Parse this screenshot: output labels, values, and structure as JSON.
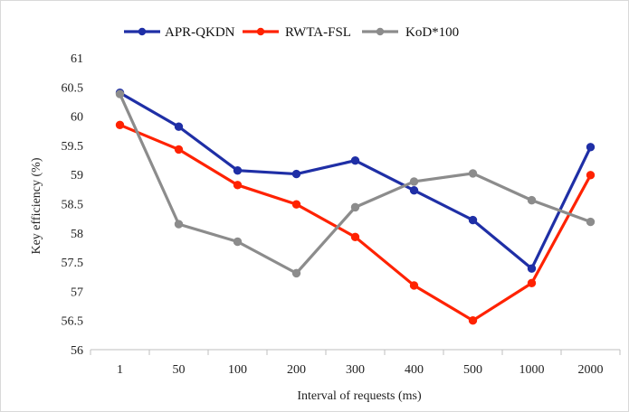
{
  "chart_data": {
    "type": "line",
    "categories": [
      "1",
      "50",
      "100",
      "200",
      "300",
      "400",
      "500",
      "1000",
      "2000"
    ],
    "series": [
      {
        "name": "APR-QKDN",
        "color": "#1f2fa6",
        "values": [
          60.4,
          59.82,
          59.07,
          59.01,
          59.24,
          58.73,
          58.22,
          57.39,
          59.47
        ]
      },
      {
        "name": "RWTA-FSL",
        "color": "#ff2200",
        "values": [
          59.85,
          59.43,
          58.82,
          58.49,
          57.93,
          57.1,
          56.5,
          57.14,
          58.99
        ]
      },
      {
        "name": "KoD*100",
        "color": "#8c8c8c",
        "values": [
          60.38,
          58.15,
          57.85,
          57.31,
          58.44,
          58.88,
          59.02,
          58.56,
          58.19
        ]
      }
    ],
    "xlabel": "Interval of requests (ms)",
    "ylabel": "Key efficiency (%)",
    "ylim": [
      56,
      61
    ],
    "yticks": [
      "56",
      "56.5",
      "57",
      "57.5",
      "58",
      "58.5",
      "59",
      "59.5",
      "60",
      "60.5",
      "61"
    ],
    "legend": "top",
    "grid": false
  }
}
